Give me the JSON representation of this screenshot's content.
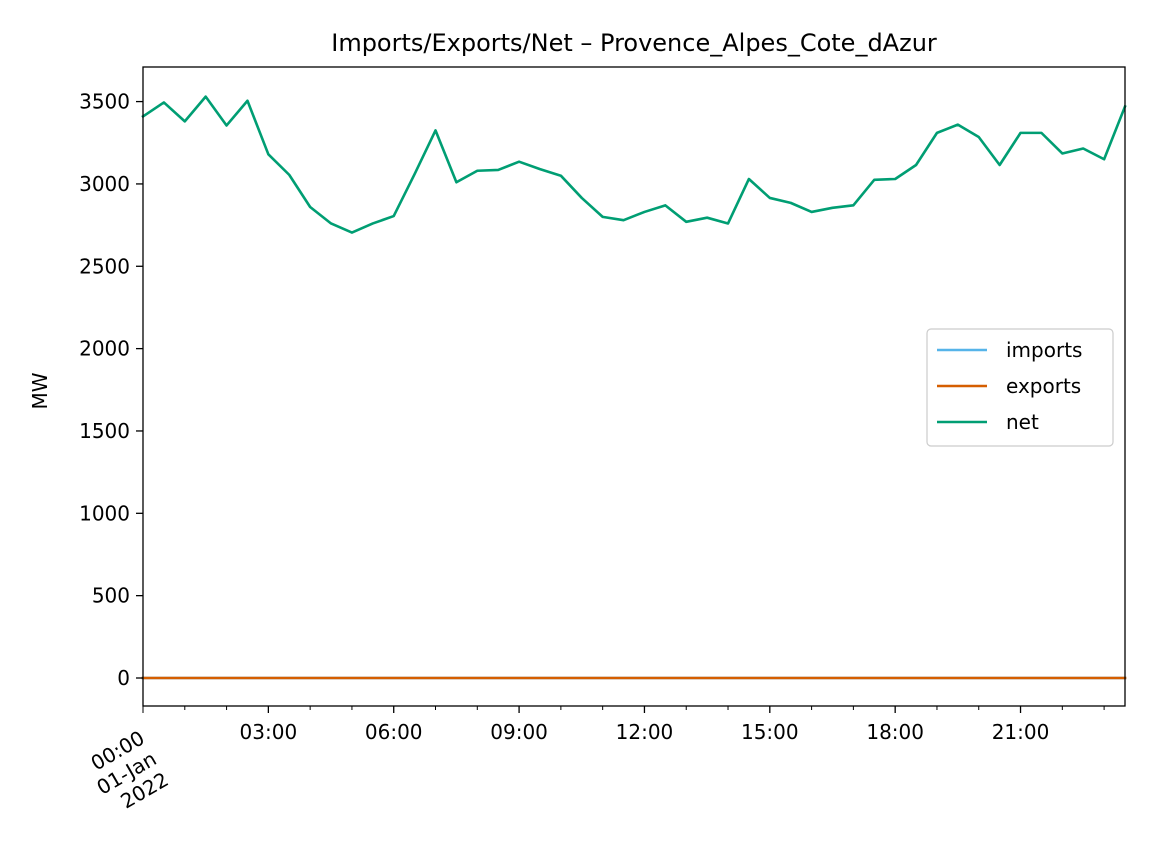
{
  "chart_data": {
    "type": "line",
    "title": "Imports/Exports/Net – Provence_Alpes_Cote_dAzur",
    "xlabel": "",
    "ylabel": "MW",
    "ylim": [
      -170,
      3710
    ],
    "xlim_hours": [
      0,
      23.5
    ],
    "grid": false,
    "legend_placement": "center-right",
    "yticks": [
      0,
      500,
      1000,
      1500,
      2000,
      2500,
      3000,
      3500
    ],
    "xticks": [
      {
        "hour": 3,
        "label": "03:00"
      },
      {
        "hour": 6,
        "label": "06:00"
      },
      {
        "hour": 9,
        "label": "09:00"
      },
      {
        "hour": 12,
        "label": "12:00"
      },
      {
        "hour": 15,
        "label": "15:00"
      },
      {
        "hour": 18,
        "label": "18:00"
      },
      {
        "hour": 21,
        "label": "21:00"
      }
    ],
    "first_tick": {
      "hour": 0,
      "lines": [
        "00:00",
        "01-Jan",
        "2022"
      ]
    },
    "x_hours": [
      0,
      0.5,
      1,
      1.5,
      2,
      2.5,
      3,
      3.5,
      4,
      4.5,
      5,
      5.5,
      6,
      6.5,
      7,
      7.5,
      8,
      8.5,
      9,
      9.5,
      10,
      10.5,
      11,
      11.5,
      12,
      12.5,
      13,
      13.5,
      14,
      14.5,
      15,
      15.5,
      16,
      16.5,
      17,
      17.5,
      18,
      18.5,
      19,
      19.5,
      20,
      20.5,
      21,
      21.5,
      22,
      22.5,
      23,
      23.5
    ],
    "series": [
      {
        "name": "imports",
        "color": "#56b4e9",
        "values": [
          0,
          0,
          0,
          0,
          0,
          0,
          0,
          0,
          0,
          0,
          0,
          0,
          0,
          0,
          0,
          0,
          0,
          0,
          0,
          0,
          0,
          0,
          0,
          0,
          0,
          0,
          0,
          0,
          0,
          0,
          0,
          0,
          0,
          0,
          0,
          0,
          0,
          0,
          0,
          0,
          0,
          0,
          0,
          0,
          0,
          0,
          0,
          0
        ]
      },
      {
        "name": "exports",
        "color": "#d55e00",
        "values": [
          0,
          0,
          0,
          0,
          0,
          0,
          0,
          0,
          0,
          0,
          0,
          0,
          0,
          0,
          0,
          0,
          0,
          0,
          0,
          0,
          0,
          0,
          0,
          0,
          0,
          0,
          0,
          0,
          0,
          0,
          0,
          0,
          0,
          0,
          0,
          0,
          0,
          0,
          0,
          0,
          0,
          0,
          0,
          0,
          0,
          0,
          0,
          0
        ]
      },
      {
        "name": "net",
        "color": "#009e73",
        "values": [
          3410,
          3495,
          3380,
          3530,
          3355,
          3505,
          3180,
          3055,
          2860,
          2760,
          2705,
          2760,
          2805,
          3060,
          3325,
          3010,
          3080,
          3085,
          3135,
          3090,
          3050,
          2915,
          2800,
          2780,
          2830,
          2870,
          2770,
          2795,
          2760,
          3030,
          2915,
          2885,
          2830,
          2855,
          2870,
          3025,
          3030,
          3115,
          3310,
          3360,
          3285,
          3115,
          3310,
          3310,
          3185,
          3215,
          3150,
          3470
        ]
      }
    ]
  }
}
